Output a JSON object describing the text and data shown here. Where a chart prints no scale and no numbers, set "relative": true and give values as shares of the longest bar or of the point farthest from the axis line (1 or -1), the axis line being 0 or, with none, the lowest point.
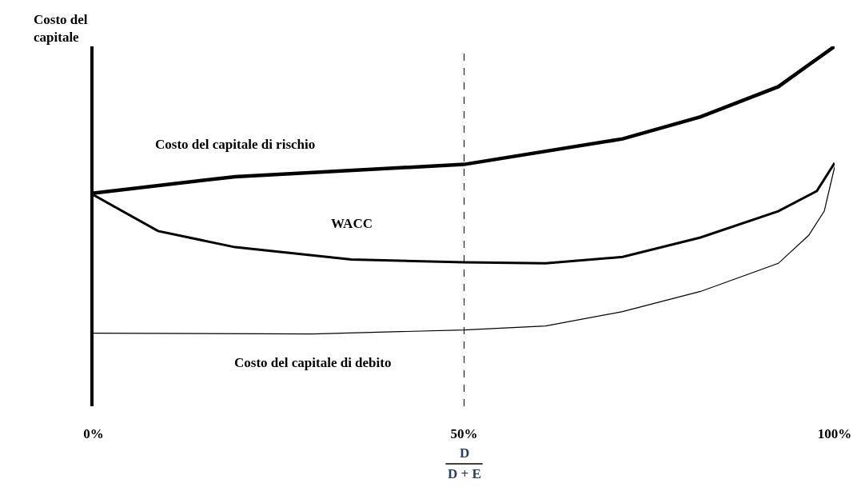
{
  "chart_data": {
    "type": "line",
    "relative": true,
    "xlabel": "D\nD + E",
    "ylabel": "Costo del\ncapitale",
    "xlim": [
      0,
      100
    ],
    "xticks": [
      {
        "value": 0,
        "label": "0%"
      },
      {
        "value": 50,
        "label": "50%"
      },
      {
        "value": 100,
        "label": "100%"
      }
    ],
    "legend": false,
    "line_style": "solid",
    "marker": "none",
    "ref_lines": [
      {
        "axis": "x",
        "value": 50,
        "color": "#000000",
        "line_style": "dashed"
      }
    ],
    "series": [
      {
        "name": "Costo del capitale di rischio",
        "color": "#000000",
        "x": [
          0,
          19.1,
          50,
          71.4,
          81.9,
          92.4,
          100
        ],
        "values": [
          0.592,
          0.638,
          0.672,
          0.743,
          0.804,
          0.888,
          1
        ]
      },
      {
        "name": "WACC",
        "color": "#000000",
        "x": [
          0,
          8.7,
          19.1,
          34.8,
          50,
          61,
          71.4,
          81.9,
          92.4,
          97.6,
          100
        ],
        "values": [
          0.587,
          0.487,
          0.442,
          0.408,
          0.4,
          0.397,
          0.415,
          0.469,
          0.542,
          0.598,
          0.676
        ]
      },
      {
        "name": "Costo del capitale di debito",
        "color": "#000000",
        "x": [
          0,
          29.6,
          50,
          61,
          71.4,
          81.9,
          92.4,
          96.5,
          98.6,
          100
        ],
        "values": [
          0.203,
          0.201,
          0.212,
          0.223,
          0.263,
          0.319,
          0.397,
          0.475,
          0.542,
          0.665
        ]
      }
    ]
  }
}
